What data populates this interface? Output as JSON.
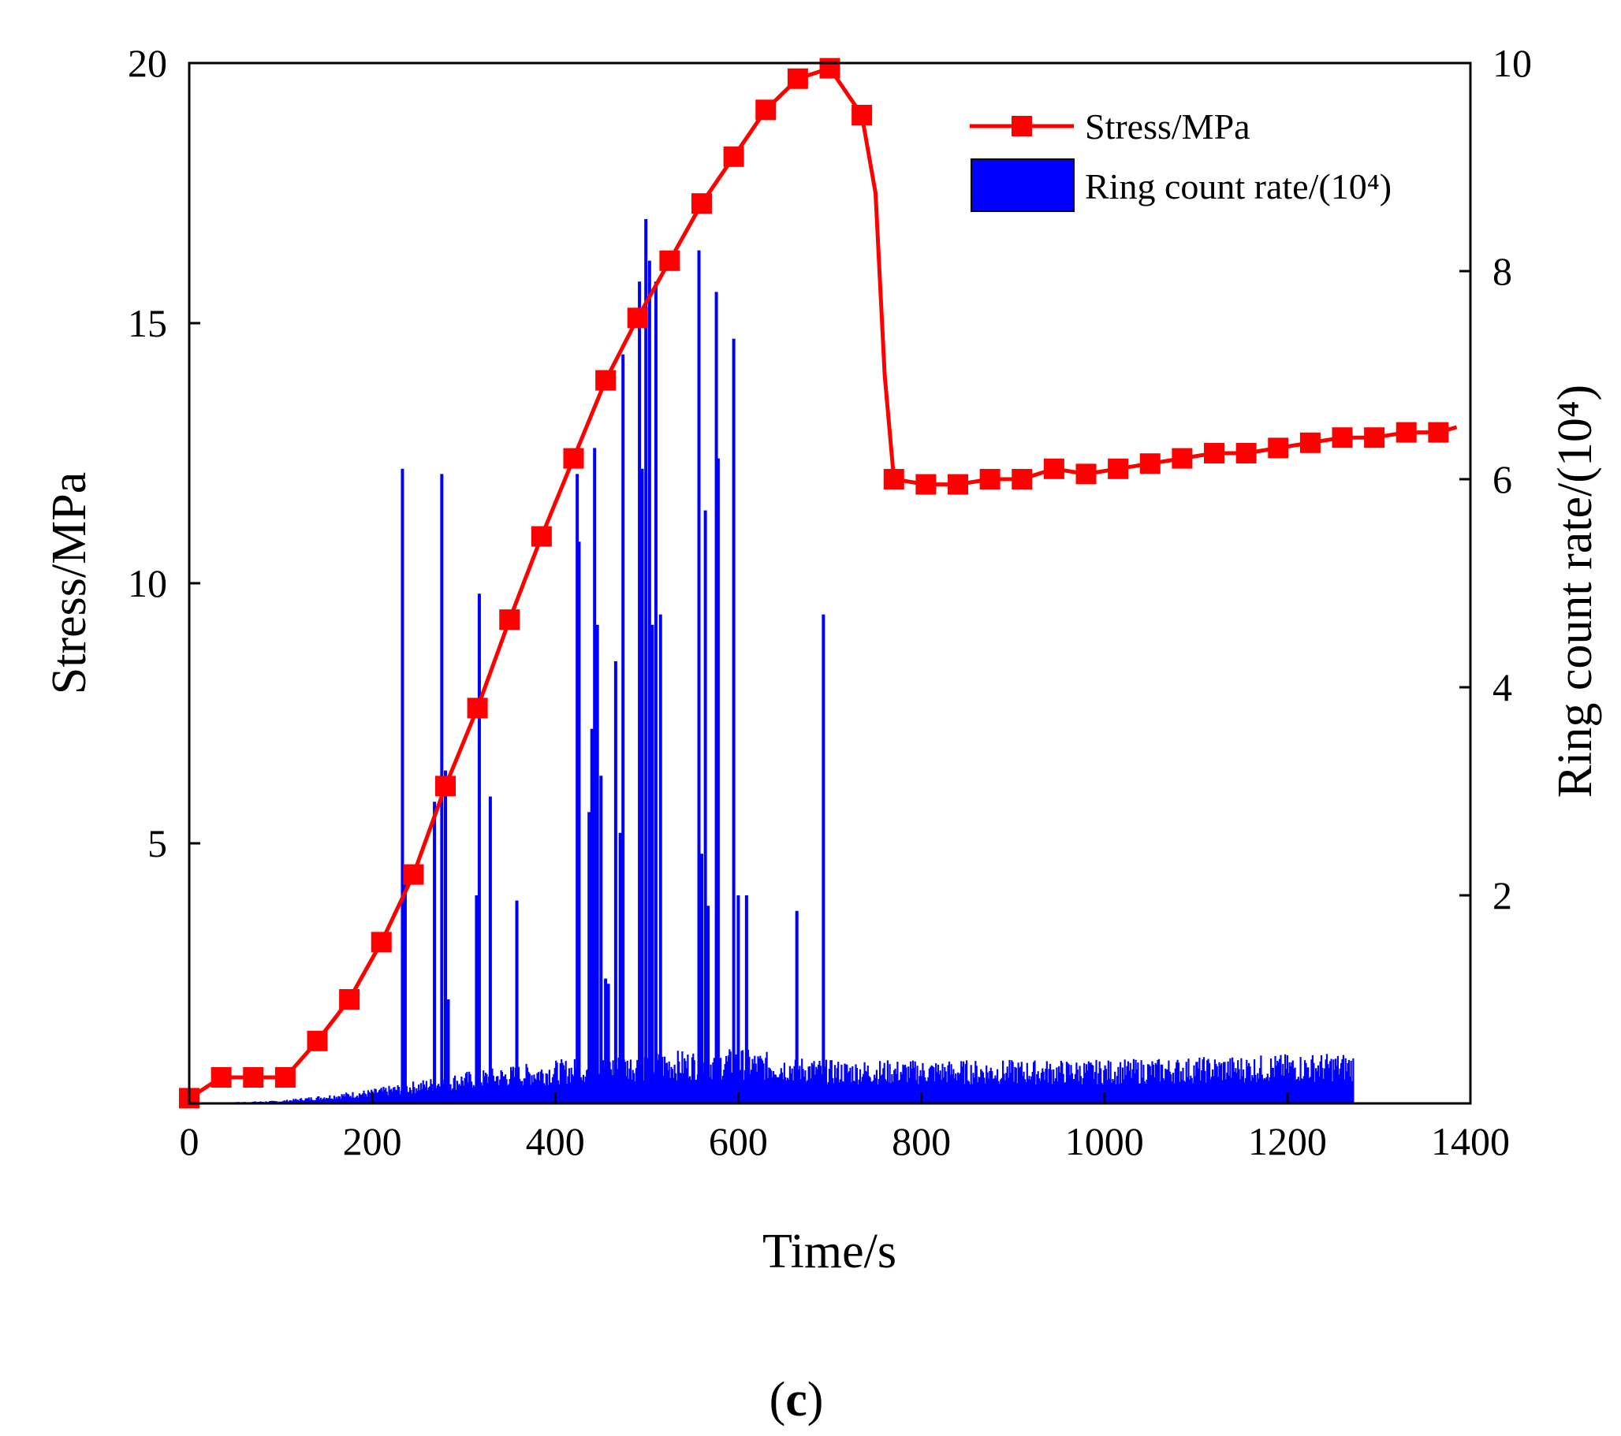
{
  "chart_data": {
    "type": "line+bar",
    "title": "",
    "panel_label": {
      "open": "(",
      "letter": "c",
      "close": ")"
    },
    "xlabel": "Time/s",
    "ylabel_left": "Stress/MPa",
    "ylabel_right": "Ring count rate/(10⁴)",
    "xlim": [
      0,
      1400
    ],
    "ylim_left": [
      0,
      20
    ],
    "ylim_right": [
      0,
      10
    ],
    "x_ticks": [
      0,
      200,
      400,
      600,
      800,
      1000,
      1200,
      1400
    ],
    "y_ticks_left": [
      5,
      10,
      15,
      20
    ],
    "y_ticks_right": [
      2,
      4,
      6,
      8,
      10
    ],
    "legend_position": "top-right",
    "legend": [
      {
        "label": "Stress/MPa",
        "color": "#ff0000",
        "marker": "square"
      },
      {
        "label": "Ring count rate/(10⁴)",
        "color": "#0000ff",
        "marker": "bar"
      }
    ],
    "series": [
      {
        "name": "Stress/MPa",
        "axis": "left",
        "color": "#ff0000",
        "x": [
          0,
          35,
          70,
          105,
          140,
          175,
          210,
          245,
          280,
          315,
          350,
          385,
          420,
          455,
          490,
          525,
          560,
          595,
          630,
          665,
          700,
          735,
          750,
          760,
          770,
          805,
          840,
          875,
          910,
          945,
          980,
          1015,
          1050,
          1085,
          1120,
          1155,
          1190,
          1225,
          1260,
          1295,
          1330,
          1365,
          1385
        ],
        "y": [
          0.1,
          0.5,
          0.5,
          0.5,
          1.2,
          2.0,
          3.1,
          4.4,
          6.1,
          7.6,
          9.3,
          10.9,
          12.4,
          13.9,
          15.1,
          16.2,
          17.3,
          18.2,
          19.1,
          19.7,
          19.9,
          19.0,
          17.5,
          14.0,
          12.0,
          11.9,
          11.9,
          12.0,
          12.0,
          12.2,
          12.1,
          12.2,
          12.3,
          12.4,
          12.5,
          12.5,
          12.6,
          12.7,
          12.8,
          12.8,
          12.9,
          12.9,
          13.0
        ],
        "marker_x": [
          0,
          35,
          70,
          105,
          140,
          175,
          210,
          245,
          280,
          315,
          350,
          385,
          420,
          455,
          490,
          525,
          560,
          595,
          630,
          665,
          700,
          735,
          770,
          805,
          840,
          875,
          910,
          945,
          980,
          1015,
          1050,
          1085,
          1120,
          1155,
          1190,
          1225,
          1260,
          1295,
          1330,
          1365
        ]
      },
      {
        "name": "Ring count rate/(10⁴)",
        "axis": "right",
        "color": "#0000ff",
        "baseline": {
          "x": [
            0,
            100,
            200,
            300,
            400,
            500,
            600,
            700,
            800,
            900,
            1000,
            1100,
            1200,
            1273
          ],
          "y": [
            0.0,
            0.02,
            0.1,
            0.22,
            0.3,
            0.36,
            0.38,
            0.3,
            0.3,
            0.3,
            0.3,
            0.32,
            0.34,
            0.35
          ]
        },
        "spikes": {
          "x": [
            233,
            236,
            268,
            276,
            280,
            283,
            314,
            317,
            329,
            358,
            424,
            426,
            437,
            440,
            443,
            446,
            450,
            455,
            458,
            466,
            471,
            474,
            492,
            495,
            499,
            503,
            506,
            510,
            515,
            557,
            560,
            564,
            567,
            576,
            578,
            595,
            600,
            609,
            664,
            693
          ],
          "values": [
            6.1,
            2.2,
            2.9,
            6.05,
            3.2,
            1.0,
            2.0,
            4.9,
            2.95,
            1.95,
            6.05,
            5.4,
            2.8,
            3.6,
            6.3,
            4.6,
            3.15,
            1.2,
            1.15,
            4.25,
            2.6,
            7.2,
            7.9,
            6.1,
            8.5,
            8.1,
            4.6,
            7.9,
            4.7,
            8.2,
            2.4,
            5.7,
            1.9,
            7.8,
            6.2,
            7.35,
            2.0,
            2.0,
            1.85,
            4.7
          ]
        }
      }
    ]
  }
}
